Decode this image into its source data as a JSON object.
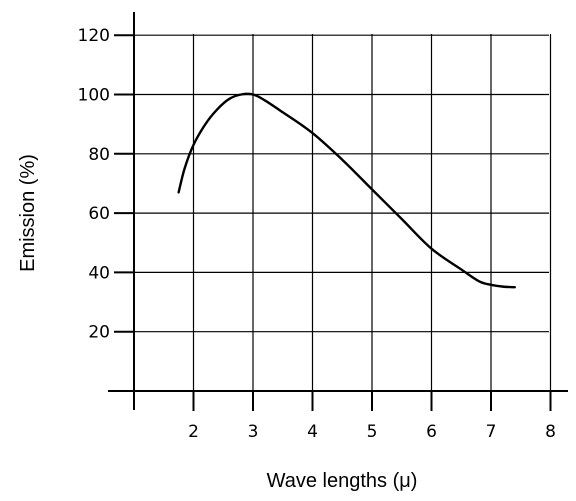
{
  "chart_data": {
    "type": "line",
    "title": "",
    "xlabel": "Wave lengths (μ)",
    "ylabel": "Emission (%)",
    "xlim": [
      1,
      8
    ],
    "ylim": [
      0,
      120
    ],
    "x_ticks": [
      2,
      3,
      4,
      5,
      6,
      7,
      8
    ],
    "y_ticks": [
      20,
      40,
      60,
      80,
      100,
      120
    ],
    "grid": true,
    "legend": "none",
    "series": [
      {
        "x": [
          1.75,
          1.85,
          2.0,
          2.2,
          2.4,
          2.6,
          2.8,
          3.0,
          3.2,
          3.5,
          4.0,
          4.5,
          5.0,
          5.5,
          6.0,
          6.5,
          6.8,
          7.0,
          7.2,
          7.4
        ],
        "y": [
          67,
          75,
          83,
          90,
          95,
          98.5,
          100,
          100,
          98,
          94,
          87,
          78,
          68,
          58,
          48,
          41,
          37,
          35.8,
          35.2,
          35
        ]
      }
    ]
  }
}
